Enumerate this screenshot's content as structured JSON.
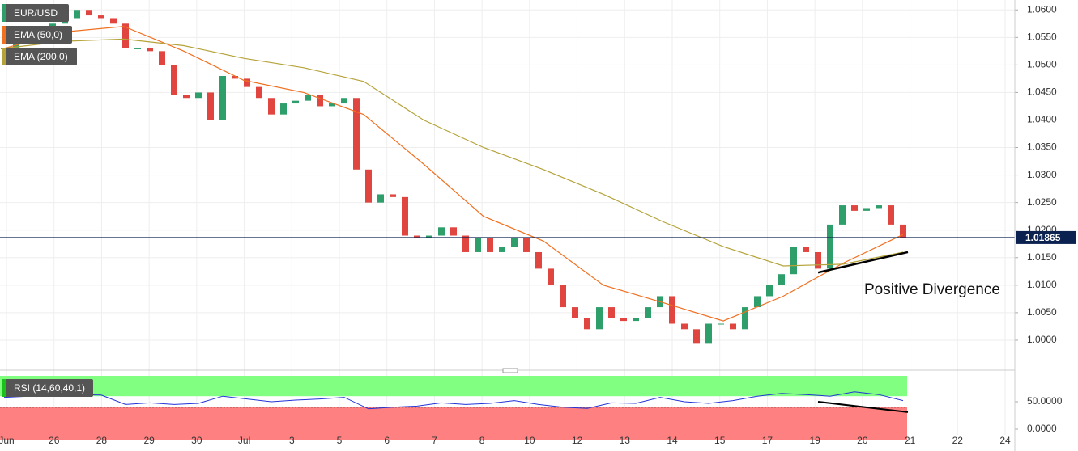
{
  "chart_data": [
    {
      "type": "candlestick",
      "series": [
        {
          "name": "EUR/USD",
          "up_color": "#2e9e6b",
          "down_color": "#e0463f",
          "values": [
            1.053,
            1.0545,
            1.0555,
            1.056,
            1.0575,
            1.0585,
            1.06,
            1.059,
            1.0585,
            1.0575,
            1.053,
            1.053,
            1.0525,
            1.05,
            1.0445,
            1.044,
            1.045,
            1.04,
            1.048,
            1.0475,
            1.046,
            1.044,
            1.041,
            1.043,
            1.0435,
            1.0445,
            1.0425,
            1.043,
            1.044,
            1.031,
            1.025,
            1.0265,
            1.026,
            1.019,
            1.0185,
            1.019,
            1.0205,
            1.019,
            1.016,
            1.0185,
            1.016,
            1.017,
            1.0185,
            1.016,
            1.013,
            1.01,
            1.006,
            1.004,
            1.002,
            1.006,
            1.004,
            1.0035,
            1.004,
            1.006,
            1.008,
            1.003,
            1.002,
            0.9995,
            1.003,
            1.003,
            1.002,
            1.006,
            1.008,
            1.01,
            1.012,
            1.017,
            1.016,
            1.013,
            1.021,
            1.0245,
            1.0235,
            1.024,
            1.0245,
            1.021,
            1.01865
          ]
        },
        {
          "name": "EMA (50,0)",
          "color": "#f07020",
          "values": [
            1.053,
            1.056,
            1.057,
            1.0525,
            1.0472,
            1.045,
            1.041,
            1.032,
            1.0225,
            1.018,
            1.01,
            1.0068,
            1.0035,
            1.008,
            1.014,
            1.0192
          ]
        },
        {
          "name": "EMA (200,0)",
          "color": "#b5a33a",
          "values": [
            1.053,
            1.0543,
            1.0547,
            1.0535,
            1.0512,
            1.0495,
            1.047,
            1.04,
            1.035,
            1.031,
            1.0265,
            1.0215,
            1.017,
            1.0135,
            1.0138,
            1.016
          ]
        }
      ],
      "ylim": [
        0.995,
        1.0618
      ],
      "yticks": [
        {
          "value": 1.0,
          "label": "1.0000"
        },
        {
          "value": 1.005,
          "label": "1.0050"
        },
        {
          "value": 1.01,
          "label": "1.0100"
        },
        {
          "value": 1.015,
          "label": "1.0150"
        },
        {
          "value": 1.02,
          "label": "1.0200"
        },
        {
          "value": 1.025,
          "label": "1.0250"
        },
        {
          "value": 1.03,
          "label": "1.0300"
        },
        {
          "value": 1.035,
          "label": "1.0350"
        },
        {
          "value": 1.04,
          "label": "1.0400"
        },
        {
          "value": 1.045,
          "label": "1.0450"
        },
        {
          "value": 1.05,
          "label": "1.0500"
        },
        {
          "value": 1.055,
          "label": "1.0550"
        },
        {
          "value": 1.06,
          "label": "1.0600"
        }
      ],
      "current_price": 1.01865,
      "trendline": [
        1.0123,
        1.016
      ],
      "annotation": "Positive Divergence",
      "grid": true
    },
    {
      "type": "line",
      "series": [
        {
          "name": "RSI (14,60,40,1)",
          "color": "#2434d8",
          "values": [
            58,
            60,
            62,
            63,
            62,
            45,
            48,
            45,
            47,
            60,
            55,
            50,
            53,
            55,
            58,
            37,
            40,
            42,
            48,
            45,
            47,
            52,
            45,
            40,
            38,
            48,
            47,
            58,
            50,
            47,
            52,
            60,
            65,
            63,
            60,
            68,
            63,
            52
          ]
        }
      ],
      "ylim": [
        -28,
        101.5
      ],
      "yticks": [
        {
          "value": 50,
          "label": "50.0000"
        },
        {
          "value": 0,
          "label": "0.0000"
        }
      ],
      "levels": [
        60,
        40
      ],
      "trendline": [
        50,
        31
      ]
    }
  ],
  "x_axis": {
    "labels": [
      "Jun",
      "26",
      "28",
      "29",
      "30",
      "Jul",
      "3",
      "5",
      "6",
      "7",
      "8",
      "10",
      "12",
      "13",
      "14",
      "15",
      "17",
      "19",
      "20",
      "21",
      "22",
      "24"
    ]
  }
}
